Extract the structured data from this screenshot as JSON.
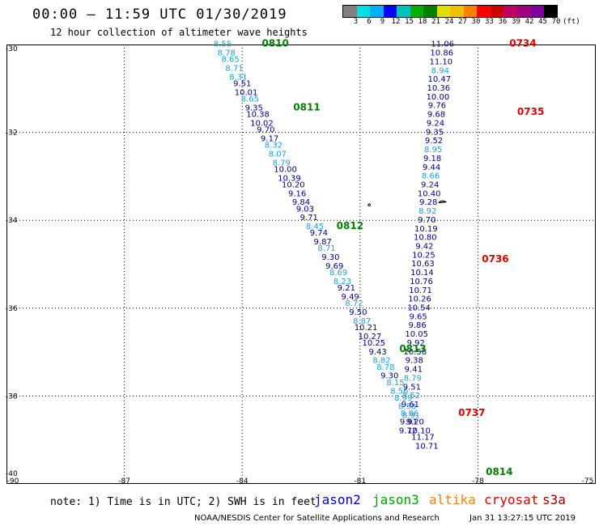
{
  "title": "00:00 – 11:59 UTC 01/30/2019",
  "subtitle": "12 hour collection of altimeter wave heights",
  "colorbar": {
    "colors": [
      "#808080",
      "#00e0e0",
      "#00b0ff",
      "#0000ff",
      "#00c0c0",
      "#00b000",
      "#008000",
      "#e0e000",
      "#f0c000",
      "#ff8000",
      "#ff0000",
      "#d00000",
      "#c00060",
      "#a00080",
      "#8000a0",
      "#000000"
    ],
    "labels": [
      "3",
      "6",
      "9",
      "12",
      "15",
      "18",
      "21",
      "24",
      "27",
      "30",
      "33",
      "36",
      "39",
      "42",
      "45",
      "70",
      "(ft)"
    ]
  },
  "map": {
    "lon_ticks": [
      "-90",
      "-87",
      "-84",
      "-81",
      "-78",
      "-75"
    ],
    "lat_ticks": [
      "-30",
      "-32",
      "-34",
      "-36",
      "-38",
      "-40"
    ],
    "lon_range": [
      -90,
      -75
    ],
    "lat_range": [
      -40,
      -30
    ]
  },
  "colors": {
    "dark": "#000080",
    "light": "#1ea0e0",
    "jason3": "#008000",
    "cryosat": "#e00000"
  },
  "track_west": {
    "time_labels": [
      {
        "text": "0810",
        "lon": -83.5,
        "lat": -30.05
      },
      {
        "text": "0811",
        "lon": -82.7,
        "lat": -31.5
      },
      {
        "text": "0812",
        "lon": -81.6,
        "lat": -34.2
      },
      {
        "text": "0813",
        "lon": -80.0,
        "lat": -37.0
      },
      {
        "text": "0814",
        "lon": -77.8,
        "lat": -39.8
      }
    ],
    "values": [
      {
        "v": "8.55",
        "lon": -84.5,
        "lat": -30.05,
        "c": "light"
      },
      {
        "v": "8.78",
        "lon": -84.4,
        "lat": -30.25,
        "c": "light"
      },
      {
        "v": "8.65",
        "lon": -84.3,
        "lat": -30.4,
        "c": "light"
      },
      {
        "v": "8.71",
        "lon": -84.2,
        "lat": -30.6,
        "c": "light"
      },
      {
        "v": "8.31",
        "lon": -84.1,
        "lat": -30.8,
        "c": "light"
      },
      {
        "v": "9.51",
        "lon": -84.0,
        "lat": -30.95,
        "c": "dark"
      },
      {
        "v": "10.01",
        "lon": -83.9,
        "lat": -31.15,
        "c": "dark"
      },
      {
        "v": "8.65",
        "lon": -83.8,
        "lat": -31.3,
        "c": "light"
      },
      {
        "v": "9.35",
        "lon": -83.7,
        "lat": -31.5,
        "c": "dark"
      },
      {
        "v": "10.38",
        "lon": -83.6,
        "lat": -31.65,
        "c": "dark"
      },
      {
        "v": "10.02",
        "lon": -83.5,
        "lat": -31.85,
        "c": "dark"
      },
      {
        "v": "9.70",
        "lon": -83.4,
        "lat": -32.0,
        "c": "dark"
      },
      {
        "v": "9.17",
        "lon": -83.3,
        "lat": -32.2,
        "c": "dark"
      },
      {
        "v": "8.32",
        "lon": -83.2,
        "lat": -32.35,
        "c": "light"
      },
      {
        "v": "8.07",
        "lon": -83.1,
        "lat": -32.55,
        "c": "light"
      },
      {
        "v": "8.79",
        "lon": -83.0,
        "lat": -32.75,
        "c": "light"
      },
      {
        "v": "10.00",
        "lon": -82.9,
        "lat": -32.9,
        "c": "dark"
      },
      {
        "v": "10.39",
        "lon": -82.8,
        "lat": -33.1,
        "c": "dark"
      },
      {
        "v": "10.20",
        "lon": -82.7,
        "lat": -33.25,
        "c": "dark"
      },
      {
        "v": "9.16",
        "lon": -82.6,
        "lat": -33.45,
        "c": "dark"
      },
      {
        "v": "9.84",
        "lon": -82.5,
        "lat": -33.65,
        "c": "dark"
      },
      {
        "v": "9.03",
        "lon": -82.4,
        "lat": -33.8,
        "c": "dark"
      },
      {
        "v": "9.71",
        "lon": -82.3,
        "lat": -34.0,
        "c": "dark"
      },
      {
        "v": "8.45",
        "lon": -82.15,
        "lat": -34.2,
        "c": "light"
      },
      {
        "v": "9.74",
        "lon": -82.05,
        "lat": -34.35,
        "c": "dark"
      },
      {
        "v": "9.87",
        "lon": -81.95,
        "lat": -34.55,
        "c": "dark"
      },
      {
        "v": "8.71",
        "lon": -81.85,
        "lat": -34.7,
        "c": "light"
      },
      {
        "v": "9.30",
        "lon": -81.75,
        "lat": -34.9,
        "c": "dark"
      },
      {
        "v": "9.69",
        "lon": -81.65,
        "lat": -35.1,
        "c": "dark"
      },
      {
        "v": "8.69",
        "lon": -81.55,
        "lat": -35.25,
        "c": "light"
      },
      {
        "v": "8.23",
        "lon": -81.45,
        "lat": -35.45,
        "c": "light"
      },
      {
        "v": "9.21",
        "lon": -81.35,
        "lat": -35.6,
        "c": "dark"
      },
      {
        "v": "9.49",
        "lon": -81.25,
        "lat": -35.8,
        "c": "dark"
      },
      {
        "v": "8.72",
        "lon": -81.15,
        "lat": -35.95,
        "c": "light"
      },
      {
        "v": "9.50",
        "lon": -81.05,
        "lat": -36.15,
        "c": "dark"
      },
      {
        "v": "8.87",
        "lon": -80.95,
        "lat": -36.35,
        "c": "light"
      },
      {
        "v": "10.21",
        "lon": -80.85,
        "lat": -36.5,
        "c": "dark"
      },
      {
        "v": "10.27",
        "lon": -80.75,
        "lat": -36.7,
        "c": "dark"
      },
      {
        "v": "10.25",
        "lon": -80.65,
        "lat": -36.85,
        "c": "dark"
      },
      {
        "v": "9.43",
        "lon": -80.55,
        "lat": -37.05,
        "c": "dark"
      },
      {
        "v": "8.82",
        "lon": -80.45,
        "lat": -37.25,
        "c": "light"
      },
      {
        "v": "8.78",
        "lon": -80.35,
        "lat": -37.4,
        "c": "light"
      },
      {
        "v": "9.30",
        "lon": -80.25,
        "lat": -37.6,
        "c": "dark"
      },
      {
        "v": "8.15",
        "lon": -80.1,
        "lat": -37.75,
        "c": "light"
      },
      {
        "v": "8.56",
        "lon": -80.0,
        "lat": -37.95,
        "c": "light"
      },
      {
        "v": "8.99",
        "lon": -79.9,
        "lat": -38.1,
        "c": "light"
      },
      {
        "v": "8.58",
        "lon": -79.8,
        "lat": -38.3,
        "c": "light"
      },
      {
        "v": "8.91",
        "lon": -79.7,
        "lat": -38.5,
        "c": "light"
      },
      {
        "v": "9.20",
        "lon": -79.6,
        "lat": -38.65,
        "c": "dark"
      },
      {
        "v": "10.10",
        "lon": -79.5,
        "lat": -38.85,
        "c": "dark"
      },
      {
        "v": "11.17",
        "lon": -79.4,
        "lat": -39.0,
        "c": "dark"
      },
      {
        "v": "10.71",
        "lon": -79.3,
        "lat": -39.2,
        "c": "dark"
      }
    ]
  },
  "track_east": {
    "time_labels": [
      {
        "text": "0734",
        "lon": -77.2,
        "lat": -30.05
      },
      {
        "text": "0735",
        "lon": -77.0,
        "lat": -31.6
      },
      {
        "text": "0736",
        "lon": -77.9,
        "lat": -34.95
      },
      {
        "text": "0737",
        "lon": -78.5,
        "lat": -38.45
      }
    ],
    "values": [
      {
        "v": "11.06",
        "lon": -78.9,
        "lat": -30.05,
        "c": "dark"
      },
      {
        "v": "10.86",
        "lon": -78.92,
        "lat": -30.25,
        "c": "dark"
      },
      {
        "v": "11.10",
        "lon": -78.94,
        "lat": -30.45,
        "c": "dark"
      },
      {
        "v": "8.94",
        "lon": -78.96,
        "lat": -30.65,
        "c": "light"
      },
      {
        "v": "10.47",
        "lon": -78.98,
        "lat": -30.85,
        "c": "dark"
      },
      {
        "v": "10.36",
        "lon": -79.0,
        "lat": -31.05,
        "c": "dark"
      },
      {
        "v": "10.00",
        "lon": -79.02,
        "lat": -31.25,
        "c": "dark"
      },
      {
        "v": "9.76",
        "lon": -79.04,
        "lat": -31.45,
        "c": "dark"
      },
      {
        "v": "9.68",
        "lon": -79.06,
        "lat": -31.65,
        "c": "dark"
      },
      {
        "v": "9.24",
        "lon": -79.08,
        "lat": -31.85,
        "c": "dark"
      },
      {
        "v": "9.35",
        "lon": -79.1,
        "lat": -32.05,
        "c": "dark"
      },
      {
        "v": "9.52",
        "lon": -79.12,
        "lat": -32.25,
        "c": "dark"
      },
      {
        "v": "8.95",
        "lon": -79.14,
        "lat": -32.45,
        "c": "light"
      },
      {
        "v": "9.18",
        "lon": -79.16,
        "lat": -32.65,
        "c": "dark"
      },
      {
        "v": "9.44",
        "lon": -79.18,
        "lat": -32.85,
        "c": "dark"
      },
      {
        "v": "8.66",
        "lon": -79.2,
        "lat": -33.05,
        "c": "light"
      },
      {
        "v": "9.24",
        "lon": -79.22,
        "lat": -33.25,
        "c": "dark"
      },
      {
        "v": "10.40",
        "lon": -79.24,
        "lat": -33.45,
        "c": "dark"
      },
      {
        "v": "9.28",
        "lon": -79.26,
        "lat": -33.65,
        "c": "dark"
      },
      {
        "v": "8.92",
        "lon": -79.28,
        "lat": -33.85,
        "c": "light"
      },
      {
        "v": "9.70",
        "lon": -79.3,
        "lat": -34.05,
        "c": "dark"
      },
      {
        "v": "10.19",
        "lon": -79.32,
        "lat": -34.25,
        "c": "dark"
      },
      {
        "v": "10.80",
        "lon": -79.34,
        "lat": -34.45,
        "c": "dark"
      },
      {
        "v": "9.42",
        "lon": -79.36,
        "lat": -34.65,
        "c": "dark"
      },
      {
        "v": "10.25",
        "lon": -79.38,
        "lat": -34.85,
        "c": "dark"
      },
      {
        "v": "10.63",
        "lon": -79.4,
        "lat": -35.05,
        "c": "dark"
      },
      {
        "v": "10.14",
        "lon": -79.42,
        "lat": -35.25,
        "c": "dark"
      },
      {
        "v": "10.76",
        "lon": -79.44,
        "lat": -35.45,
        "c": "dark"
      },
      {
        "v": "10.71",
        "lon": -79.46,
        "lat": -35.65,
        "c": "dark"
      },
      {
        "v": "10.26",
        "lon": -79.48,
        "lat": -35.85,
        "c": "dark"
      },
      {
        "v": "10.54",
        "lon": -79.5,
        "lat": -36.05,
        "c": "dark"
      },
      {
        "v": "9.65",
        "lon": -79.52,
        "lat": -36.25,
        "c": "dark"
      },
      {
        "v": "9.86",
        "lon": -79.54,
        "lat": -36.45,
        "c": "dark"
      },
      {
        "v": "10.05",
        "lon": -79.56,
        "lat": -36.65,
        "c": "dark"
      },
      {
        "v": "9.92",
        "lon": -79.58,
        "lat": -36.85,
        "c": "dark"
      },
      {
        "v": "10.58",
        "lon": -79.6,
        "lat": -37.05,
        "c": "dark"
      },
      {
        "v": "9.38",
        "lon": -79.62,
        "lat": -37.25,
        "c": "dark"
      },
      {
        "v": "9.41",
        "lon": -79.64,
        "lat": -37.45,
        "c": "dark"
      },
      {
        "v": "8.79",
        "lon": -79.66,
        "lat": -37.65,
        "c": "light"
      },
      {
        "v": "9.51",
        "lon": -79.68,
        "lat": -37.85,
        "c": "dark"
      },
      {
        "v": "8.52",
        "lon": -79.7,
        "lat": -38.05,
        "c": "light"
      },
      {
        "v": "9.61",
        "lon": -79.72,
        "lat": -38.25,
        "c": "dark"
      },
      {
        "v": "8.86",
        "lon": -79.74,
        "lat": -38.45,
        "c": "light"
      },
      {
        "v": "9.91",
        "lon": -79.76,
        "lat": -38.65,
        "c": "dark"
      },
      {
        "v": "9.72",
        "lon": -79.78,
        "lat": -38.85,
        "c": "dark"
      }
    ]
  },
  "footer": {
    "note": "note: 1) Time is in UTC; 2) SWH is in feet",
    "satellites": [
      {
        "name": "jason2",
        "color": "#0000c0"
      },
      {
        "name": "jason3",
        "color": "#00a000"
      },
      {
        "name": "altika",
        "color": "#ff8000"
      },
      {
        "name": "cryosat",
        "color": "#e00000"
      },
      {
        "name": "s3a",
        "color": "#a00000"
      }
    ],
    "credit": "NOAA/NESDIS Center for Satellite Applications and Research",
    "timestamp": "Jan 31 13:27:15 UTC 2019"
  }
}
